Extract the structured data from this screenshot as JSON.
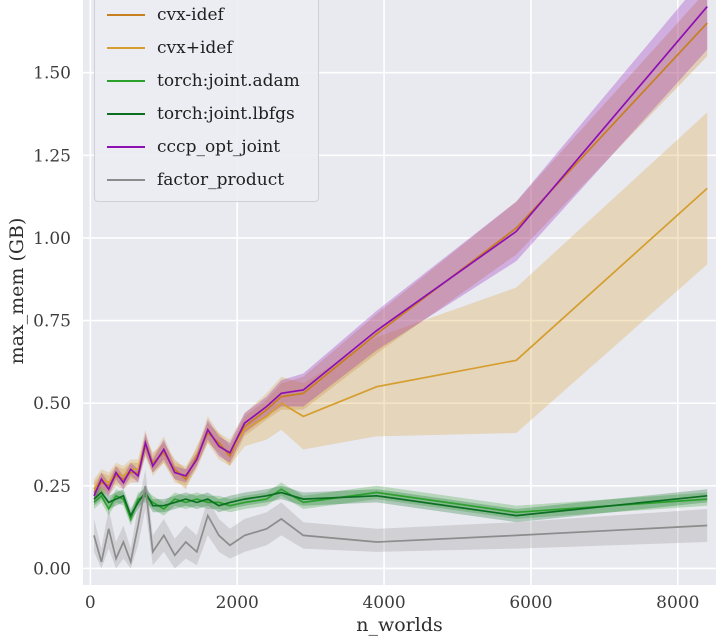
{
  "figure": {
    "background": "#ffffff",
    "plot_background": "#e9e9f0",
    "grid_color": "#ffffff",
    "tick_text_color": "#3c3c3c"
  },
  "chart_data": {
    "type": "line",
    "title": "",
    "xlabel": "n_worlds",
    "ylabel": "max_mem (GB)",
    "grid": true,
    "legend_position": "upper left",
    "xlim": [
      -100,
      8520
    ],
    "ylim": [
      -0.05,
      1.72
    ],
    "xticks": [
      0,
      2000,
      4000,
      6000,
      8000
    ],
    "xtick_labels": [
      "0",
      "2000",
      "4000",
      "6000",
      "8000"
    ],
    "yticks": [
      0,
      0.25,
      0.5,
      0.75,
      1.0,
      1.25,
      1.5
    ],
    "ytick_labels": [
      "0.00",
      "0.25",
      "0.50",
      "0.75",
      "1.00",
      "1.25",
      "1.50"
    ],
    "x": [
      50,
      150,
      250,
      350,
      450,
      550,
      650,
      750,
      850,
      1000,
      1150,
      1300,
      1450,
      1600,
      1750,
      1900,
      2100,
      2400,
      2600,
      2900,
      3900,
      5800,
      8400
    ],
    "series": [
      {
        "name": "cvx-idef",
        "color": "#c77f1f",
        "values": [
          0.23,
          0.26,
          0.25,
          0.28,
          0.27,
          0.29,
          0.29,
          0.37,
          0.32,
          0.35,
          0.3,
          0.27,
          0.34,
          0.41,
          0.38,
          0.34,
          0.43,
          0.48,
          0.52,
          0.53,
          0.71,
          1.03,
          1.65
        ],
        "lo": [
          0.2,
          0.23,
          0.22,
          0.25,
          0.24,
          0.26,
          0.26,
          0.34,
          0.29,
          0.32,
          0.27,
          0.24,
          0.31,
          0.38,
          0.35,
          0.31,
          0.4,
          0.45,
          0.48,
          0.48,
          0.65,
          0.95,
          1.55
        ],
        "hi": [
          0.26,
          0.29,
          0.28,
          0.31,
          0.3,
          0.32,
          0.32,
          0.4,
          0.35,
          0.38,
          0.33,
          0.3,
          0.37,
          0.44,
          0.41,
          0.37,
          0.46,
          0.51,
          0.56,
          0.58,
          0.77,
          1.11,
          1.75
        ]
      },
      {
        "name": "cvx+idef",
        "color": "#d59e2e",
        "values": [
          0.24,
          0.27,
          0.26,
          0.29,
          0.28,
          0.3,
          0.3,
          0.38,
          0.31,
          0.36,
          0.29,
          0.28,
          0.33,
          0.42,
          0.37,
          0.35,
          0.42,
          0.46,
          0.5,
          0.46,
          0.55,
          0.63,
          1.15
        ],
        "lo": [
          0.21,
          0.24,
          0.23,
          0.26,
          0.25,
          0.27,
          0.27,
          0.34,
          0.28,
          0.32,
          0.26,
          0.25,
          0.3,
          0.38,
          0.33,
          0.31,
          0.37,
          0.39,
          0.42,
          0.36,
          0.4,
          0.41,
          0.92
        ],
        "hi": [
          0.27,
          0.3,
          0.29,
          0.32,
          0.31,
          0.33,
          0.33,
          0.42,
          0.34,
          0.4,
          0.32,
          0.31,
          0.36,
          0.46,
          0.41,
          0.39,
          0.47,
          0.53,
          0.58,
          0.56,
          0.7,
          0.85,
          1.38
        ]
      },
      {
        "name": "torch:joint.adam",
        "color": "#2ca02c",
        "values": [
          0.2,
          0.22,
          0.18,
          0.22,
          0.21,
          0.15,
          0.21,
          0.22,
          0.2,
          0.18,
          0.21,
          0.2,
          0.21,
          0.2,
          0.2,
          0.19,
          0.2,
          0.21,
          0.24,
          0.2,
          0.23,
          0.17,
          0.21
        ],
        "lo": [
          0.18,
          0.2,
          0.16,
          0.2,
          0.19,
          0.13,
          0.19,
          0.2,
          0.18,
          0.16,
          0.19,
          0.18,
          0.19,
          0.18,
          0.18,
          0.17,
          0.18,
          0.19,
          0.22,
          0.18,
          0.21,
          0.15,
          0.19
        ],
        "hi": [
          0.22,
          0.24,
          0.2,
          0.24,
          0.23,
          0.17,
          0.23,
          0.24,
          0.22,
          0.2,
          0.23,
          0.22,
          0.23,
          0.22,
          0.22,
          0.21,
          0.22,
          0.23,
          0.26,
          0.22,
          0.25,
          0.19,
          0.23
        ]
      },
      {
        "name": "torch:joint.lbfgs",
        "color": "#0b6e23",
        "values": [
          0.21,
          0.23,
          0.2,
          0.21,
          0.22,
          0.16,
          0.2,
          0.23,
          0.19,
          0.19,
          0.2,
          0.21,
          0.2,
          0.21,
          0.19,
          0.2,
          0.21,
          0.22,
          0.23,
          0.21,
          0.22,
          0.16,
          0.22
        ],
        "lo": [
          0.19,
          0.21,
          0.18,
          0.19,
          0.2,
          0.14,
          0.18,
          0.21,
          0.17,
          0.17,
          0.18,
          0.19,
          0.18,
          0.19,
          0.17,
          0.18,
          0.19,
          0.2,
          0.21,
          0.19,
          0.2,
          0.14,
          0.2
        ],
        "hi": [
          0.23,
          0.25,
          0.22,
          0.23,
          0.24,
          0.18,
          0.22,
          0.25,
          0.21,
          0.21,
          0.22,
          0.23,
          0.22,
          0.23,
          0.21,
          0.22,
          0.23,
          0.24,
          0.25,
          0.23,
          0.24,
          0.18,
          0.24
        ]
      },
      {
        "name": "cccp_opt_joint",
        "color": "#8e0fb4",
        "values": [
          0.22,
          0.27,
          0.24,
          0.29,
          0.26,
          0.3,
          0.28,
          0.38,
          0.31,
          0.36,
          0.29,
          0.28,
          0.33,
          0.42,
          0.37,
          0.35,
          0.44,
          0.49,
          0.53,
          0.54,
          0.72,
          1.02,
          1.7
        ],
        "lo": [
          0.2,
          0.25,
          0.22,
          0.27,
          0.24,
          0.28,
          0.26,
          0.35,
          0.29,
          0.33,
          0.27,
          0.26,
          0.31,
          0.39,
          0.34,
          0.32,
          0.41,
          0.46,
          0.49,
          0.49,
          0.66,
          0.93,
          1.57
        ],
        "hi": [
          0.24,
          0.29,
          0.26,
          0.31,
          0.28,
          0.32,
          0.3,
          0.41,
          0.33,
          0.39,
          0.31,
          0.3,
          0.35,
          0.45,
          0.4,
          0.38,
          0.47,
          0.52,
          0.57,
          0.59,
          0.78,
          1.11,
          1.8
        ]
      },
      {
        "name": "factor_product",
        "color": "#8c8c8c",
        "values": [
          0.1,
          0.02,
          0.12,
          0.03,
          0.08,
          0.02,
          0.13,
          0.25,
          0.05,
          0.1,
          0.04,
          0.08,
          0.05,
          0.16,
          0.1,
          0.07,
          0.1,
          0.12,
          0.15,
          0.1,
          0.08,
          0.1,
          0.13
        ],
        "lo": [
          0.05,
          0.0,
          0.06,
          0.0,
          0.03,
          0.0,
          0.07,
          0.18,
          0.01,
          0.05,
          0.0,
          0.03,
          0.01,
          0.1,
          0.05,
          0.03,
          0.05,
          0.07,
          0.1,
          0.06,
          0.05,
          0.06,
          0.08
        ],
        "hi": [
          0.15,
          0.06,
          0.18,
          0.08,
          0.13,
          0.06,
          0.19,
          0.3,
          0.1,
          0.15,
          0.09,
          0.13,
          0.1,
          0.21,
          0.15,
          0.12,
          0.15,
          0.17,
          0.2,
          0.14,
          0.12,
          0.14,
          0.18
        ]
      }
    ]
  }
}
